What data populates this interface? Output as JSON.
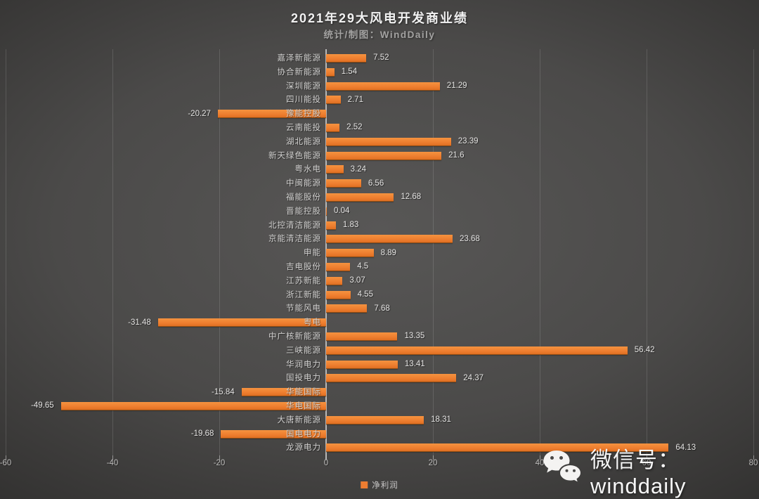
{
  "header": {
    "title": "2021年29大风电开发商业绩",
    "subtitle": "统计/制图：WindDaily"
  },
  "legend": {
    "label": "净利润",
    "swatch_color": "#ED7D31"
  },
  "watermark": {
    "icon": "wechat-icon",
    "text": "微信号：winddaily"
  },
  "colors": {
    "bar": "#ED7D31",
    "background_center": "#585756",
    "background_edge": "#262626",
    "axis_text": "#BDBCBB",
    "category_text": "#D2D1D0",
    "value_text": "#E3E2E1"
  },
  "chart_data": {
    "type": "bar",
    "orientation": "horizontal",
    "title": "2021年29大风电开发商业绩",
    "subtitle": "统计/制图：WindDaily",
    "series_name": "净利润",
    "xlabel": "",
    "ylabel": "",
    "xlim": [
      -60,
      80
    ],
    "x_ticks": [
      -60,
      -40,
      -20,
      0,
      20,
      40,
      60,
      80
    ],
    "grid": true,
    "legend_position": "bottom",
    "categories_top_to_bottom": [
      "嘉泽新能源",
      "协合新能源",
      "深圳能源",
      "四川能投",
      "豫能控股",
      "云南能投",
      "湖北能源",
      "新天绿色能源",
      "粤水电",
      "中闽能源",
      "福能股份",
      "晋能控股",
      "北控清洁能源",
      "京能清洁能源",
      "申能",
      "吉电股份",
      "江苏新能",
      "浙江新能",
      "节能风电",
      "粤电",
      "中广核新能源",
      "三峡能源",
      "华润电力",
      "国投电力",
      "华能国际",
      "华电国际",
      "大唐新能源",
      "国电电力",
      "龙源电力"
    ],
    "values": [
      7.52,
      1.54,
      21.29,
      2.71,
      -20.27,
      2.52,
      23.39,
      21.6,
      3.24,
      6.56,
      12.68,
      0.04,
      1.83,
      23.68,
      8.89,
      4.5,
      3.07,
      4.55,
      7.68,
      -31.48,
      13.35,
      56.42,
      13.41,
      24.37,
      -15.84,
      -49.65,
      18.31,
      -19.68,
      64.13
    ]
  }
}
